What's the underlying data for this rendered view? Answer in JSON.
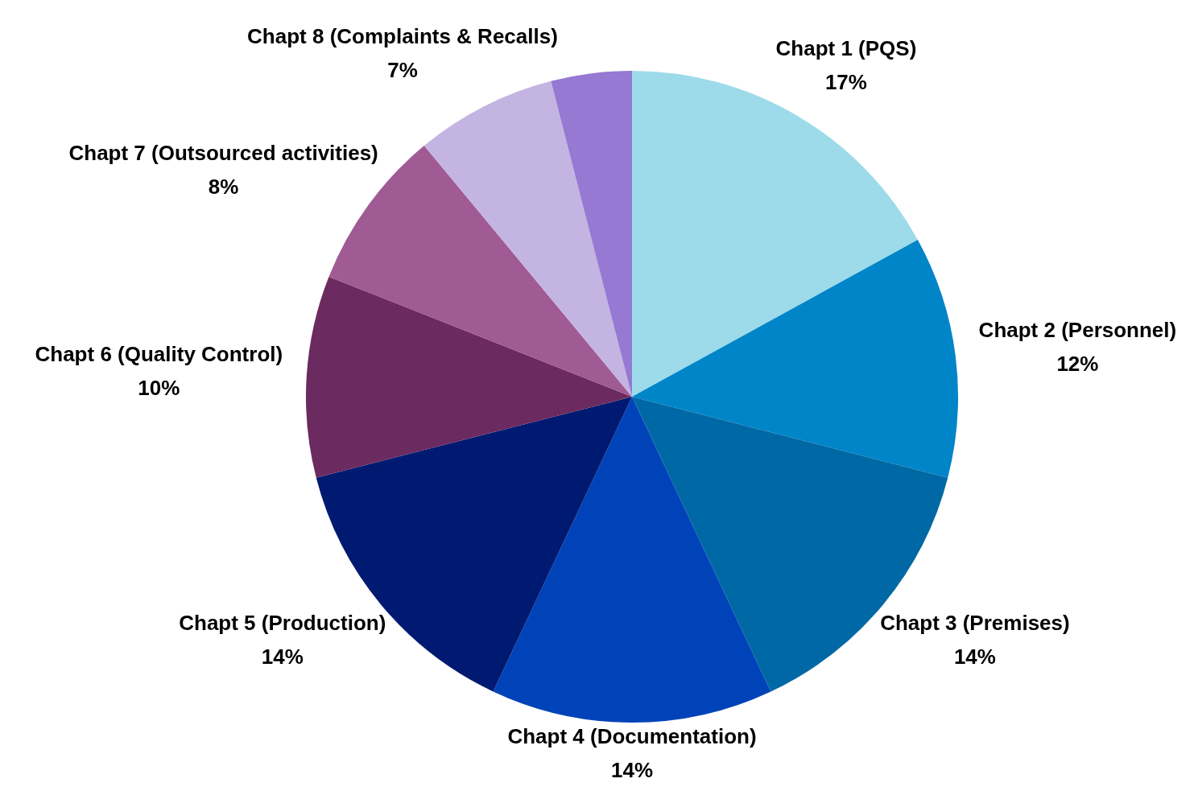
{
  "chart_data": {
    "type": "pie",
    "categories": [
      "Chapt 1 (PQS)",
      "Chapt 2 (Personnel)",
      "Chapt 3 (Premises)",
      "Chapt 4 (Documentation)",
      "Chapt 5 (Production)",
      "Chapt 6 (Quality Control)",
      "Chapt 7 (Outsourced activities)",
      "Chapt 8 (Complaints & Recalls)",
      null
    ],
    "values": [
      17,
      12,
      14,
      14,
      14,
      10,
      8,
      7,
      4
    ],
    "value_labels": [
      "17%",
      "12%",
      "14%",
      "14%",
      "14%",
      "10%",
      "8%",
      "7%",
      null
    ],
    "colors": [
      "#9ddbea",
      "#0085c9",
      "#0069a5",
      "#0043b8",
      "#001a72",
      "#6b2a60",
      "#a05a94",
      "#c4b4e2",
      "#9579d3"
    ],
    "legend": false
  }
}
